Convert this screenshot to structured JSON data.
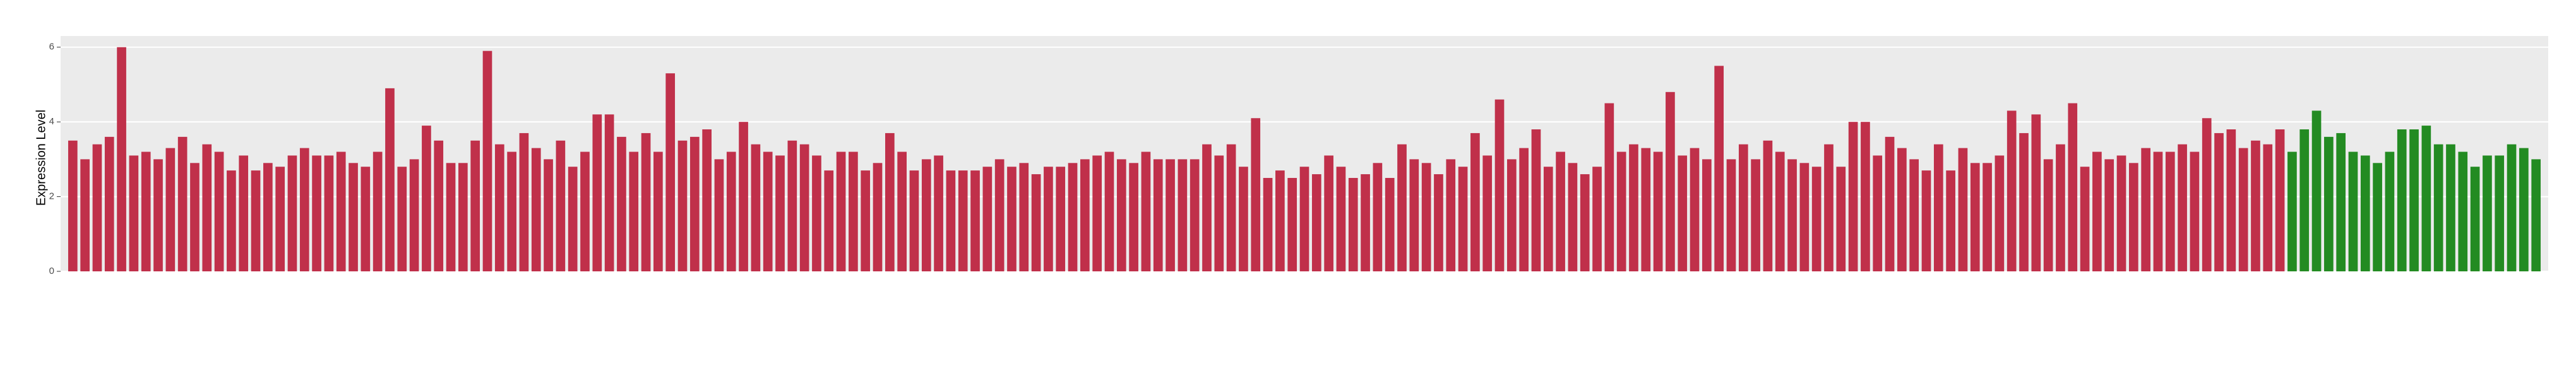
{
  "chart_data": {
    "type": "bar",
    "y_label": "Expression Level",
    "series": [
      {
        "color": "#c0304a",
        "values": [
          3.5,
          3.0,
          3.4,
          3.6,
          6.0,
          3.1,
          3.2,
          3.0,
          3.3,
          3.6,
          2.9,
          3.4,
          3.2,
          2.7,
          3.1,
          2.7,
          2.9,
          2.8,
          3.1,
          3.3,
          3.1,
          3.1,
          3.2,
          2.9,
          2.8,
          3.2,
          4.9,
          2.8,
          3.0,
          3.9,
          3.5,
          2.9,
          2.9,
          3.5,
          5.9,
          3.4,
          3.2,
          3.7,
          3.3,
          3.0,
          3.5,
          2.8,
          3.2,
          4.2,
          4.2,
          3.6,
          3.2,
          3.7,
          3.2,
          5.3,
          3.5,
          3.6,
          3.8,
          3.0,
          3.2,
          4.0,
          3.4,
          3.2,
          3.1,
          3.5,
          3.4,
          3.1,
          2.7,
          3.2,
          3.2,
          2.7,
          2.9,
          3.7,
          3.2,
          2.7,
          3.0,
          3.1,
          2.7,
          2.7,
          2.7,
          2.8,
          3.0,
          2.8,
          2.9,
          2.6,
          2.8,
          2.8,
          2.9,
          3.0,
          3.1,
          3.2,
          3.0,
          2.9,
          3.2,
          3.0,
          3.0,
          3.0,
          3.0,
          3.4,
          3.1,
          3.4,
          2.8,
          4.1,
          2.5,
          2.7,
          2.5,
          2.8,
          2.6,
          3.1,
          2.8,
          2.5,
          2.6,
          2.9,
          2.5,
          3.4,
          3.0,
          2.9,
          2.6,
          3.0,
          2.8,
          3.7,
          3.1,
          4.6,
          3.0,
          3.3,
          3.8,
          2.8,
          3.2,
          2.9,
          2.6,
          2.8,
          4.5,
          3.2,
          3.4,
          3.3,
          3.2,
          4.8,
          3.1,
          3.3,
          3.0,
          5.5,
          3.0,
          3.4,
          3.0,
          3.5,
          3.2,
          3.0,
          2.9,
          2.8,
          3.4,
          2.8,
          4.0,
          4.0,
          3.1,
          3.6,
          3.3,
          3.0,
          2.7,
          3.4,
          2.7,
          3.3,
          2.9,
          2.9,
          3.1,
          4.3,
          3.7,
          4.2,
          3.0,
          3.4,
          4.5,
          2.8,
          3.2,
          3.0,
          3.1,
          2.9,
          3.3,
          3.2,
          3.2,
          3.4,
          3.2,
          4.1,
          3.7,
          3.8,
          3.3,
          3.5,
          3.4,
          3.8
        ]
      },
      {
        "color": "#238b22",
        "values": [
          3.2,
          3.8,
          4.3,
          3.6,
          3.7,
          3.2,
          3.1,
          2.9,
          3.2,
          3.8,
          3.8,
          3.9,
          3.4,
          3.4,
          3.2,
          2.8,
          3.1,
          3.1,
          3.4,
          3.3,
          3.0
        ]
      }
    ],
    "ylim": [
      0,
      6.3
    ],
    "yticks": [
      0,
      2,
      4,
      6
    ],
    "grid": true
  }
}
